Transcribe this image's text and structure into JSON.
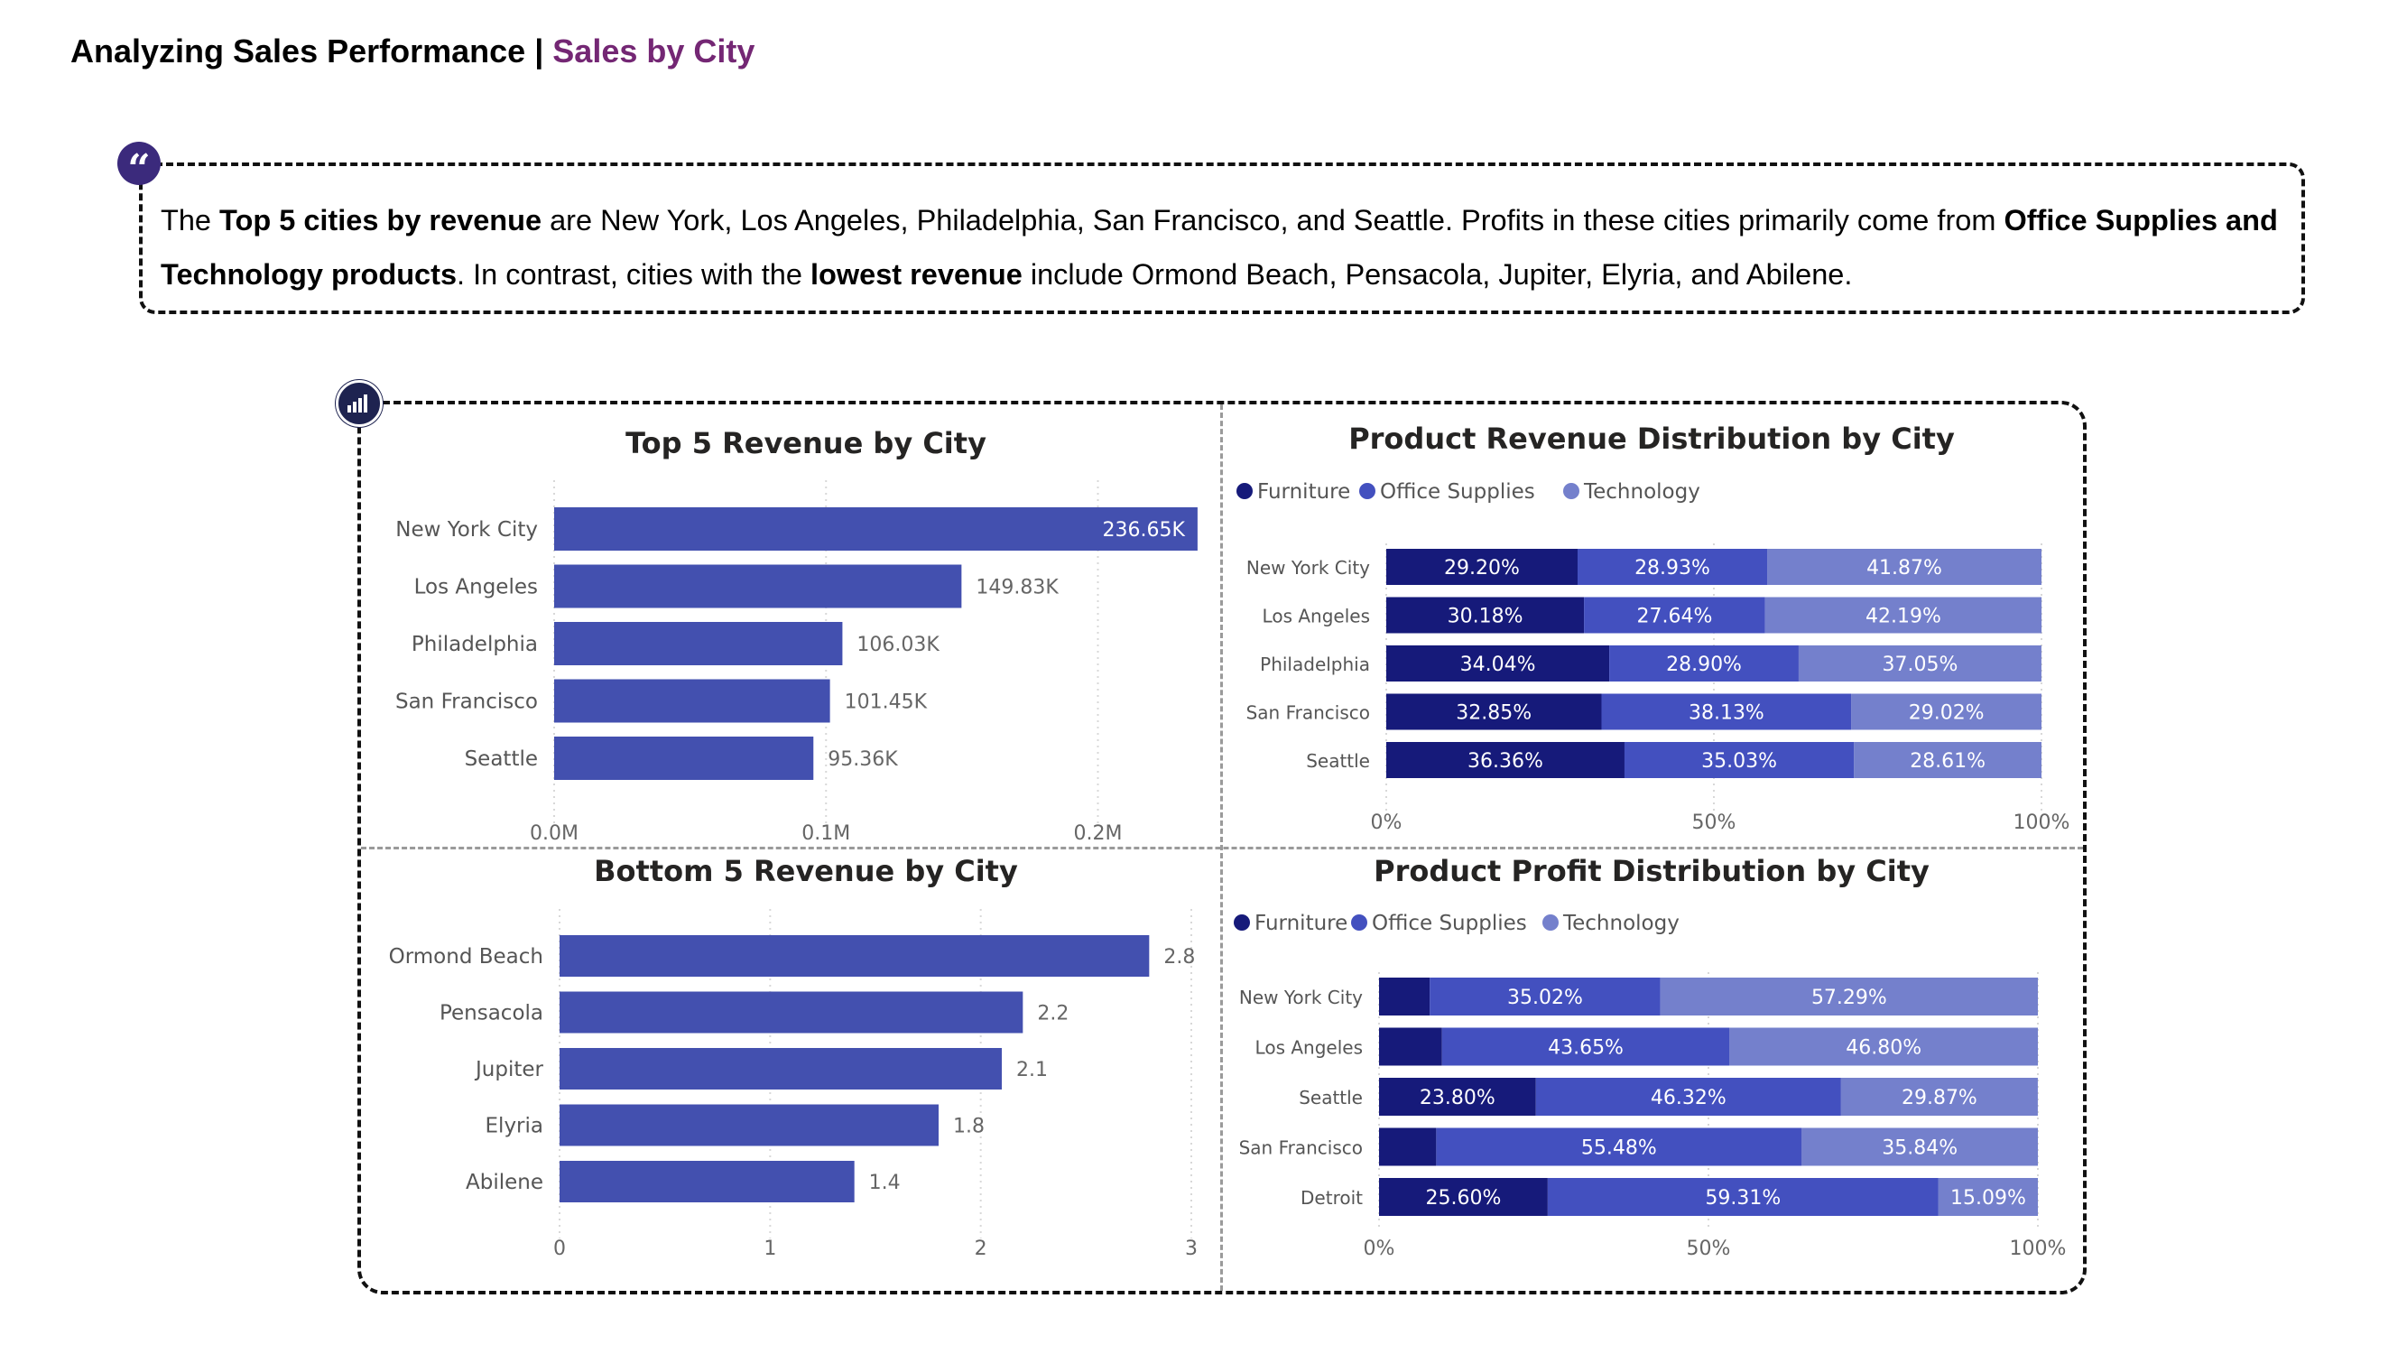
{
  "header": {
    "title_main": "Analyzing Sales Performance | ",
    "title_accent": "Sales by City"
  },
  "quote": {
    "icon": "quote-icon",
    "segments": [
      {
        "text": "The ",
        "bold": false
      },
      {
        "text": "Top 5 cities by revenue",
        "bold": true
      },
      {
        "text": " are New York, Los Angeles, Philadelphia, San Francisco, and Seattle. Profits in these cities primarily come from ",
        "bold": false
      },
      {
        "text": "Office Supplies and Technology products",
        "bold": true
      },
      {
        "text": ". In contrast, cities with the ",
        "bold": false
      },
      {
        "text": "lowest revenue",
        "bold": true
      },
      {
        "text": " include Ormond Beach, Pensacola, Jupiter, Elyria, and Abilene.",
        "bold": false
      }
    ]
  },
  "colors": {
    "bar": "#4350af",
    "furniture": "#161a7a",
    "office_supplies": "#4350bf",
    "technology": "#7480cc",
    "accent": "#742774"
  },
  "chart_data": [
    {
      "type": "bar",
      "orientation": "horizontal",
      "title": "Top 5 Revenue by City",
      "categories": [
        "New York City",
        "Los Angeles",
        "Philadelphia",
        "San Francisco",
        "Seattle"
      ],
      "values": [
        236.65,
        149.83,
        106.03,
        101.45,
        95.36
      ],
      "value_labels": [
        "236.65K",
        "149.83K",
        "106.03K",
        "101.45K",
        "95.36K"
      ],
      "xlim": [
        0,
        240
      ],
      "xticks": [
        0,
        100,
        200
      ],
      "xtick_labels": [
        "0.0M",
        "0.1M",
        "0.2M"
      ],
      "grid": true
    },
    {
      "type": "bar",
      "orientation": "horizontal",
      "stacked_percent": true,
      "title": "Product Revenue Distribution by City",
      "legend": [
        "Furniture",
        "Office Supplies",
        "Technology"
      ],
      "legend_position": "top-left",
      "categories": [
        "New York City",
        "Los Angeles",
        "Philadelphia",
        "San Francisco",
        "Seattle"
      ],
      "series": [
        {
          "name": "Furniture",
          "values": [
            29.2,
            30.18,
            34.04,
            32.85,
            36.36
          ]
        },
        {
          "name": "Office Supplies",
          "values": [
            28.93,
            27.64,
            28.9,
            38.13,
            35.03
          ]
        },
        {
          "name": "Technology",
          "values": [
            41.87,
            42.19,
            37.05,
            29.02,
            28.61
          ]
        }
      ],
      "xticks": [
        0,
        50,
        100
      ],
      "xtick_labels": [
        "0%",
        "50%",
        "100%"
      ],
      "grid": true
    },
    {
      "type": "bar",
      "orientation": "horizontal",
      "title": "Bottom 5 Revenue by City",
      "categories": [
        "Ormond Beach",
        "Pensacola",
        "Jupiter",
        "Elyria",
        "Abilene"
      ],
      "values": [
        2.8,
        2.2,
        2.1,
        1.8,
        1.4
      ],
      "value_labels": [
        "2.8",
        "2.2",
        "2.1",
        "1.8",
        "1.4"
      ],
      "xlim": [
        0,
        3
      ],
      "xticks": [
        0,
        1,
        2,
        3
      ],
      "xtick_labels": [
        "0",
        "1",
        "2",
        "3"
      ],
      "grid": true
    },
    {
      "type": "bar",
      "orientation": "horizontal",
      "stacked_percent": true,
      "title": "Product Profit Distribution by City",
      "legend": [
        "Furniture",
        "Office Supplies",
        "Technology"
      ],
      "legend_position": "top-left",
      "categories": [
        "New York City",
        "Los Angeles",
        "Seattle",
        "San Francisco",
        "Detroit"
      ],
      "series": [
        {
          "name": "Furniture",
          "values": [
            7.69,
            9.55,
            23.8,
            8.68,
            25.6
          ]
        },
        {
          "name": "Office Supplies",
          "values": [
            35.02,
            43.65,
            46.32,
            55.48,
            59.31
          ]
        },
        {
          "name": "Technology",
          "values": [
            57.29,
            46.8,
            29.87,
            35.84,
            15.09
          ]
        }
      ],
      "segment_labels": [
        [
          "",
          "35.02%",
          "57.29%"
        ],
        [
          "",
          "43.65%",
          "46.80%"
        ],
        [
          "23.80%",
          "46.32%",
          "29.87%"
        ],
        [
          "",
          "55.48%",
          "35.84%"
        ],
        [
          "25.60%",
          "59.31%",
          "15.09%"
        ]
      ],
      "xticks": [
        0,
        50,
        100
      ],
      "xtick_labels": [
        "0%",
        "50%",
        "100%"
      ],
      "grid": true
    }
  ]
}
